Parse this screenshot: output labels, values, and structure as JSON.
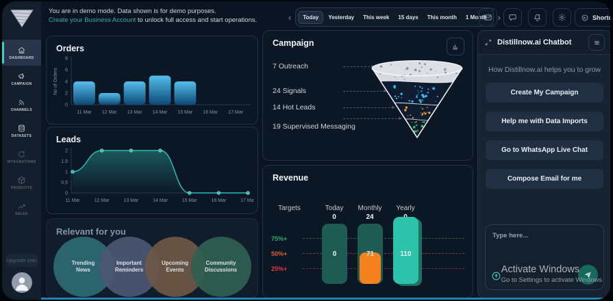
{
  "banner": {
    "line1": "You are in demo mode. Data shown is for demo purposes.",
    "link": "Create your Business Account",
    "line2_rest": " to unlock full access and start operations."
  },
  "topbar": {
    "prev": "‹",
    "next": "›",
    "ranges": [
      "Today",
      "Yesterday",
      "This week",
      "15 days",
      "This month",
      "1 Month"
    ],
    "active_range": "Today",
    "shortcuts_label": "Shortcuts"
  },
  "sidebar": {
    "items": [
      {
        "label": "DASHBOARD",
        "icon": "home",
        "active": true,
        "dim": false
      },
      {
        "label": "CAMPAIGN",
        "icon": "megaphone",
        "active": false,
        "dim": false
      },
      {
        "label": "CHANNELS",
        "icon": "signal",
        "active": false,
        "dim": false
      },
      {
        "label": "DATASETS",
        "icon": "database",
        "active": false,
        "dim": false
      },
      {
        "label": "INTEGRATIONS",
        "icon": "refresh",
        "active": false,
        "dim": true
      },
      {
        "label": "PRODUCTS",
        "icon": "cube",
        "active": false,
        "dim": true
      },
      {
        "label": "SALES",
        "icon": "trend",
        "active": false,
        "dim": true
      }
    ],
    "upgrade_label": "Upgrade plan"
  },
  "orders": {
    "title": "Orders"
  },
  "leads": {
    "title": "Leads"
  },
  "campaign": {
    "title": "Campaign",
    "stages": [
      "7 Outreach",
      "24 Signals",
      "14 Hot Leads",
      "19 Supervised Messaging"
    ]
  },
  "revenue": {
    "title": "Revenue",
    "targets_label": "Targets",
    "thresholds": [
      {
        "label": "75%+",
        "pct": 75,
        "color": "#2fae63"
      },
      {
        "label": "50%+",
        "pct": 50,
        "color": "#e0632f"
      },
      {
        "label": "25%+",
        "pct": 25,
        "color": "#e53944"
      }
    ],
    "columns": [
      {
        "name": "Today",
        "value": "0",
        "bar_label": "0",
        "bar_style": "muted",
        "fill_pct": 0
      },
      {
        "name": "Monthly",
        "value": "24",
        "bar_label": "71",
        "bar_style": "muted",
        "fill_pct": 52
      },
      {
        "name": "Yearly",
        "value": "0",
        "bar_label": "110",
        "bar_style": "bright",
        "fill_pct": 100
      }
    ]
  },
  "relevant": {
    "title": "Relevant for you",
    "circles": [
      {
        "label": "Trending News",
        "color": "#2f6b74"
      },
      {
        "label": "Important Reminders",
        "color": "#4d5774"
      },
      {
        "label": "Upcoming Events",
        "color": "#6e5847"
      },
      {
        "label": "Community Discussions",
        "color": "#2f6052"
      }
    ]
  },
  "chatbot": {
    "title": "Distillnow.ai Chatbot",
    "subtitle": "How Distillnow.ai helps you to grow",
    "buttons": [
      "Create My Campaign",
      "Help me with Data Imports",
      "Go to WhatsApp Live Chat",
      "Compose Email for me"
    ],
    "input_placeholder": "Type here..."
  },
  "watermark": {
    "line1": "Activate Windows",
    "line2": "Go to Settings to activate Windows"
  },
  "chart_data": [
    {
      "type": "bar",
      "title": "Orders",
      "categories": [
        "11 Mar",
        "12 Mar",
        "13 Mar",
        "14 Mar",
        "15 Mar",
        "16 Mar",
        "17 Mar"
      ],
      "values": [
        4,
        2,
        4,
        5,
        4,
        0,
        0
      ],
      "xlabel": "",
      "ylabel": "No of Orders",
      "ylim": [
        0,
        8
      ],
      "yticks": [
        0,
        2,
        4,
        6,
        8
      ],
      "bar_color_top": "#55bdea",
      "bar_color_bottom": "#0d4a78"
    },
    {
      "type": "line",
      "title": "Leads",
      "x": [
        "11 Mar",
        "12 Mar",
        "13 Mar",
        "14 Mar",
        "15 Mar",
        "16 Mar",
        "17 Mar"
      ],
      "values": [
        1,
        2,
        2,
        2,
        0,
        0,
        0
      ],
      "xlabel": "",
      "ylabel": "No of Leads",
      "ylim": [
        0,
        2
      ],
      "yticks": [
        0,
        0.5,
        1,
        1.5,
        2
      ],
      "line_color": "#2fbdb3"
    },
    {
      "type": "funnel",
      "title": "Campaign",
      "stages": [
        {
          "label": "Outreach",
          "value": 7,
          "dot_color": "#8f98a8"
        },
        {
          "label": "Signals",
          "value": 24,
          "dot_color": "#2fb9f2"
        },
        {
          "label": "Hot Leads",
          "value": 14,
          "dot_color": "#f0a13c"
        },
        {
          "label": "Supervised Messaging",
          "value": 19,
          "dot_color": "#46b85c"
        }
      ]
    },
    {
      "type": "bar",
      "title": "Revenue targets",
      "categories": [
        "Today",
        "Monthly",
        "Yearly"
      ],
      "values": [
        0,
        71,
        110
      ],
      "target_values": [
        "0",
        "24",
        "0"
      ],
      "thresholds": [
        "25%+",
        "50%+",
        "75%+"
      ]
    }
  ]
}
